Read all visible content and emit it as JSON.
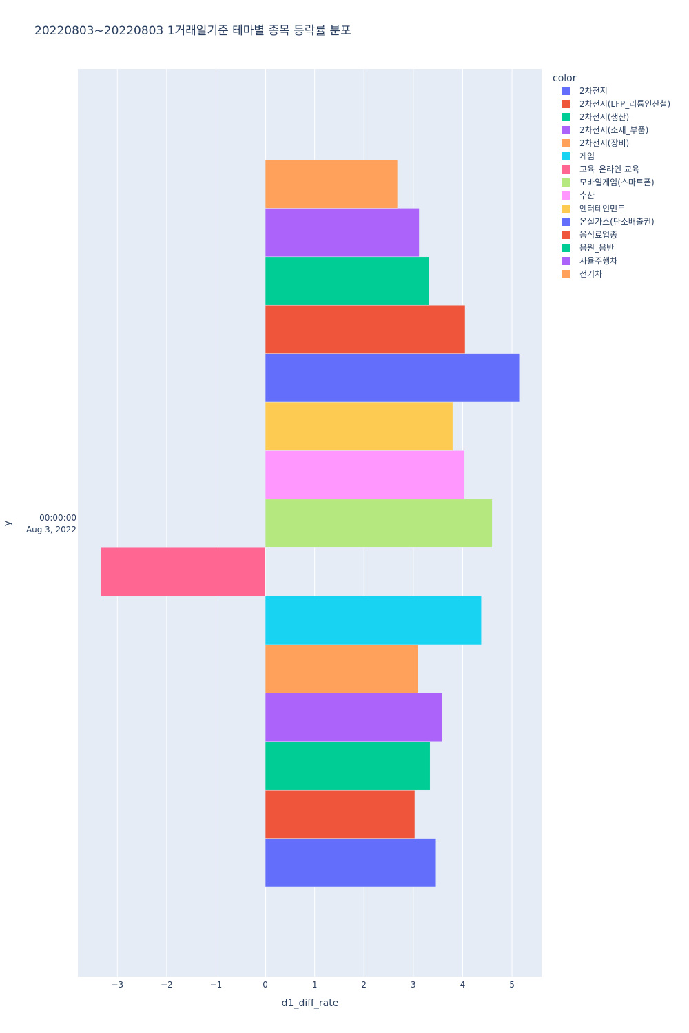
{
  "chart_data": {
    "type": "bar",
    "orientation": "horizontal",
    "title": "20220803~20220803 1거래일기준 테마별 종목 등락률 분포",
    "xlabel": "d1_diff_rate",
    "ylabel": "y",
    "y_category": [
      "00:00:00",
      "Aug 3, 2022"
    ],
    "xlim": [
      -3.8,
      5.6
    ],
    "xticks": [
      -3,
      -2,
      -1,
      0,
      1,
      2,
      3,
      4,
      5
    ],
    "xtick_labels": [
      "−3",
      "−2",
      "−1",
      "0",
      "1",
      "2",
      "3",
      "4",
      "5"
    ],
    "legend_title": "color",
    "legend_position": "top-right",
    "series": [
      {
        "name": "2차전지",
        "value": 3.46,
        "color": "#636efa"
      },
      {
        "name": "2차전지(LFP_리튬인산철)",
        "value": 3.03,
        "color": "#EF553B"
      },
      {
        "name": "2차전지(생산)",
        "value": 3.34,
        "color": "#00cc96"
      },
      {
        "name": "2차전지(소재_부품)",
        "value": 3.58,
        "color": "#ab63fa"
      },
      {
        "name": "2차전지(장비)",
        "value": 3.09,
        "color": "#FFA15A"
      },
      {
        "name": "게임",
        "value": 4.38,
        "color": "#19d3f3"
      },
      {
        "name": "교육_온라인 교육",
        "value": -3.33,
        "color": "#FF6692"
      },
      {
        "name": "모바일게임(스마트폰)",
        "value": 4.6,
        "color": "#B6E880"
      },
      {
        "name": "수산",
        "value": 4.04,
        "color": "#FF97FF"
      },
      {
        "name": "엔터테인먼트",
        "value": 3.8,
        "color": "#FECB52"
      },
      {
        "name": "온실가스(탄소배출권)",
        "value": 5.15,
        "color": "#636efa"
      },
      {
        "name": "음식료업종",
        "value": 4.05,
        "color": "#EF553B"
      },
      {
        "name": "음원_음반",
        "value": 3.32,
        "color": "#00cc96"
      },
      {
        "name": "자율주행차",
        "value": 3.12,
        "color": "#ab63fa"
      },
      {
        "name": "전기차",
        "value": 2.68,
        "color": "#FFA15A"
      }
    ]
  }
}
